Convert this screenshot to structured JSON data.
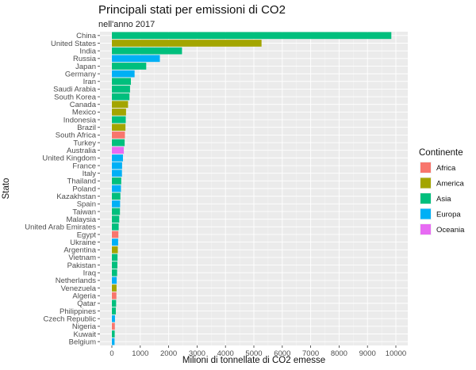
{
  "chart_data": {
    "type": "bar",
    "orientation": "horizontal",
    "title": "Principali stati per emissioni di CO2",
    "subtitle": "nell'anno 2017",
    "xlabel": "Milioni di tonnellate di CO2 emesse",
    "ylabel": "Stato",
    "xlim": [
      0,
      10000
    ],
    "x_ticks": [
      0,
      1000,
      2000,
      3000,
      4000,
      5000,
      6000,
      7000,
      8000,
      9000,
      10000
    ],
    "grid": true,
    "legend": {
      "title": "Continente",
      "position": "right",
      "entries": [
        {
          "label": "Africa",
          "color": "#F8766D"
        },
        {
          "label": "America",
          "color": "#A3A500"
        },
        {
          "label": "Asia",
          "color": "#00BF7D"
        },
        {
          "label": "Europa",
          "color": "#00B0F6"
        },
        {
          "label": "Oceania",
          "color": "#E76BF3"
        }
      ]
    },
    "bars": [
      {
        "category": "China",
        "value": 9840,
        "group": "Asia"
      },
      {
        "category": "United States",
        "value": 5270,
        "group": "America"
      },
      {
        "category": "India",
        "value": 2470,
        "group": "Asia"
      },
      {
        "category": "Russia",
        "value": 1690,
        "group": "Europa"
      },
      {
        "category": "Japan",
        "value": 1210,
        "group": "Asia"
      },
      {
        "category": "Germany",
        "value": 800,
        "group": "Europa"
      },
      {
        "category": "Iran",
        "value": 670,
        "group": "Asia"
      },
      {
        "category": "Saudi Arabia",
        "value": 640,
        "group": "Asia"
      },
      {
        "category": "South Korea",
        "value": 620,
        "group": "Asia"
      },
      {
        "category": "Canada",
        "value": 570,
        "group": "America"
      },
      {
        "category": "Mexico",
        "value": 500,
        "group": "America"
      },
      {
        "category": "Indonesia",
        "value": 490,
        "group": "Asia"
      },
      {
        "category": "Brazil",
        "value": 480,
        "group": "America"
      },
      {
        "category": "South Africa",
        "value": 460,
        "group": "Africa"
      },
      {
        "category": "Turkey",
        "value": 450,
        "group": "Asia"
      },
      {
        "category": "Australia",
        "value": 420,
        "group": "Oceania"
      },
      {
        "category": "United Kingdom",
        "value": 390,
        "group": "Europa"
      },
      {
        "category": "France",
        "value": 360,
        "group": "Europa"
      },
      {
        "category": "Italy",
        "value": 355,
        "group": "Europa"
      },
      {
        "category": "Thailand",
        "value": 330,
        "group": "Asia"
      },
      {
        "category": "Poland",
        "value": 320,
        "group": "Europa"
      },
      {
        "category": "Kazakhstan",
        "value": 300,
        "group": "Asia"
      },
      {
        "category": "Spain",
        "value": 290,
        "group": "Europa"
      },
      {
        "category": "Taiwan",
        "value": 285,
        "group": "Asia"
      },
      {
        "category": "Malaysia",
        "value": 260,
        "group": "Asia"
      },
      {
        "category": "United Arab Emirates",
        "value": 240,
        "group": "Asia"
      },
      {
        "category": "Egypt",
        "value": 230,
        "group": "Africa"
      },
      {
        "category": "Ukraine",
        "value": 220,
        "group": "Europa"
      },
      {
        "category": "Argentina",
        "value": 210,
        "group": "America"
      },
      {
        "category": "Vietnam",
        "value": 200,
        "group": "Asia"
      },
      {
        "category": "Pakistan",
        "value": 195,
        "group": "Asia"
      },
      {
        "category": "Iraq",
        "value": 185,
        "group": "Asia"
      },
      {
        "category": "Netherlands",
        "value": 170,
        "group": "Europa"
      },
      {
        "category": "Venezuela",
        "value": 165,
        "group": "America"
      },
      {
        "category": "Algeria",
        "value": 160,
        "group": "Africa"
      },
      {
        "category": "Qatar",
        "value": 150,
        "group": "Asia"
      },
      {
        "category": "Philippines",
        "value": 140,
        "group": "Asia"
      },
      {
        "category": "Czech Republic",
        "value": 110,
        "group": "Europa"
      },
      {
        "category": "Nigeria",
        "value": 105,
        "group": "Africa"
      },
      {
        "category": "Kuwait",
        "value": 100,
        "group": "Asia"
      },
      {
        "category": "Belgium",
        "value": 95,
        "group": "Europa"
      }
    ]
  }
}
